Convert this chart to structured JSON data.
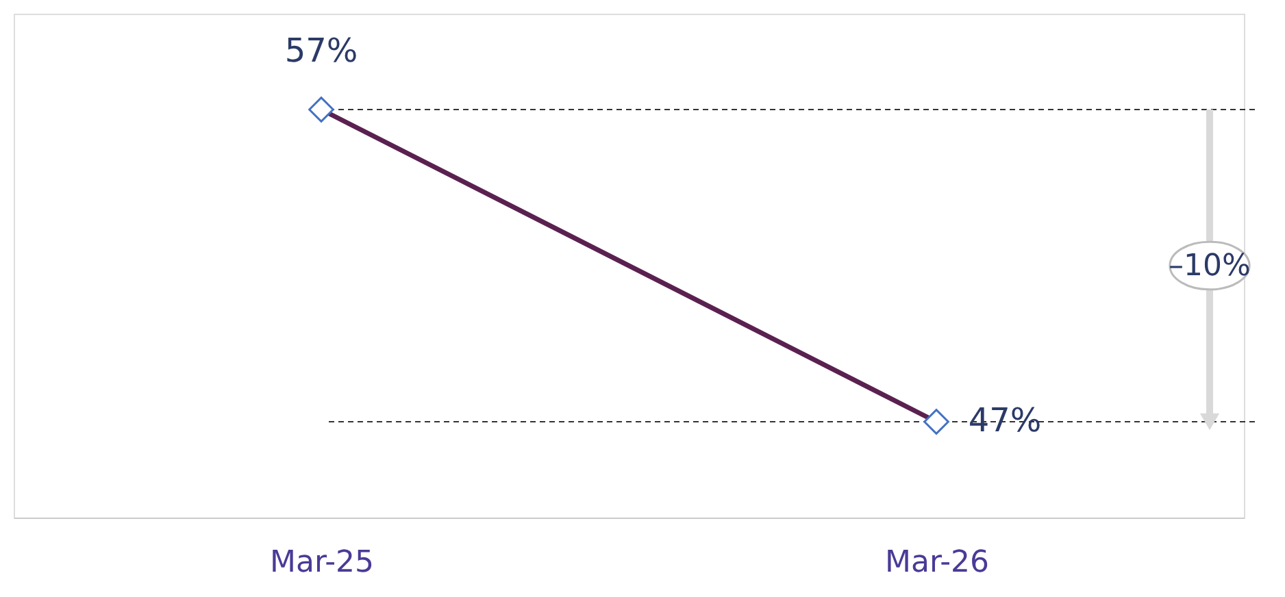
{
  "chart_data": {
    "type": "line",
    "categories": [
      "Mar-25",
      "Mar-26"
    ],
    "series": [
      {
        "color": "#5a2150",
        "values": [
          57,
          47
        ],
        "value_labels": [
          "57%",
          "47%"
        ]
      }
    ],
    "marker": "diamond",
    "line_style": "solid",
    "grid": false,
    "legend": false,
    "tick_labels": "x",
    "ref_lines": [
      {
        "axis": "y",
        "value": 57,
        "color": "#333333",
        "line_style": "dashed"
      },
      {
        "axis": "y",
        "value": 47,
        "color": "#333333",
        "line_style": "dashed"
      }
    ],
    "annotations": [
      "–10%"
    ]
  }
}
